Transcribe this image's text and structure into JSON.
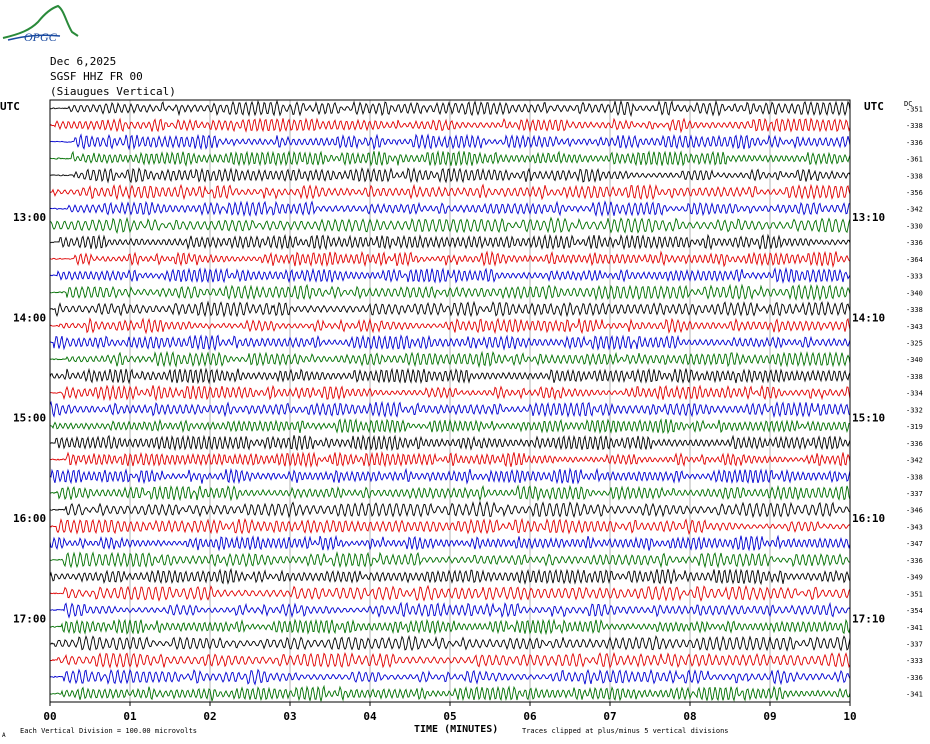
{
  "logo": {
    "text": "OPGC"
  },
  "header": {
    "date": "Dec 6,2025",
    "station": "SGSF HHZ FR 00",
    "location": "(Siaugues Vertical)"
  },
  "axis": {
    "left_unit": "UTC",
    "right_unit": "UTC",
    "dc_label": "DC",
    "xlabel": "TIME (MINUTES)",
    "footer_left": "Each Vertical Division =  100.00 microvolts",
    "footer_right": "Traces clipped at plus/minus 5 vertical divisions",
    "corner_mark": "A"
  },
  "colors": {
    "cycle": [
      "#000000",
      "#e00000",
      "#0000d0",
      "#007000"
    ],
    "grid": "#808080"
  },
  "chart_data": {
    "type": "line",
    "title": "",
    "xlabel": "TIME (MINUTES)",
    "x_ticks": [
      "00",
      "01",
      "02",
      "03",
      "04",
      "05",
      "06",
      "07",
      "08",
      "09",
      "10"
    ],
    "xlim": [
      0,
      10
    ],
    "left_time_labels": [
      {
        "trace": 7,
        "label": "13:00"
      },
      {
        "trace": 13,
        "label": "14:00"
      },
      {
        "trace": 19,
        "label": "15:00"
      },
      {
        "trace": 25,
        "label": "16:00"
      },
      {
        "trace": 31,
        "label": "17:00"
      }
    ],
    "right_time_labels": [
      {
        "trace": 7,
        "label": "13:10"
      },
      {
        "trace": 13,
        "label": "14:10"
      },
      {
        "trace": 19,
        "label": "15:10"
      },
      {
        "trace": 25,
        "label": "16:10"
      },
      {
        "trace": 31,
        "label": "17:10"
      }
    ],
    "dc_offsets": [
      "-351",
      "-338",
      "-336",
      "-361",
      "-338",
      "-356",
      "-342",
      "-330",
      "-336",
      "-364",
      "-333",
      "-340",
      "-338",
      "-343",
      "-325",
      "-340",
      "-338",
      "-334",
      "-332",
      "-319",
      "-336",
      "-342",
      "-338",
      "-337",
      "-346",
      "-343",
      "-347",
      "-336",
      "-349",
      "-351",
      "-354",
      "-341",
      "-337",
      "-333",
      "-336",
      "-341"
    ],
    "series_count": 36,
    "amplitude_divisions": 5
  }
}
